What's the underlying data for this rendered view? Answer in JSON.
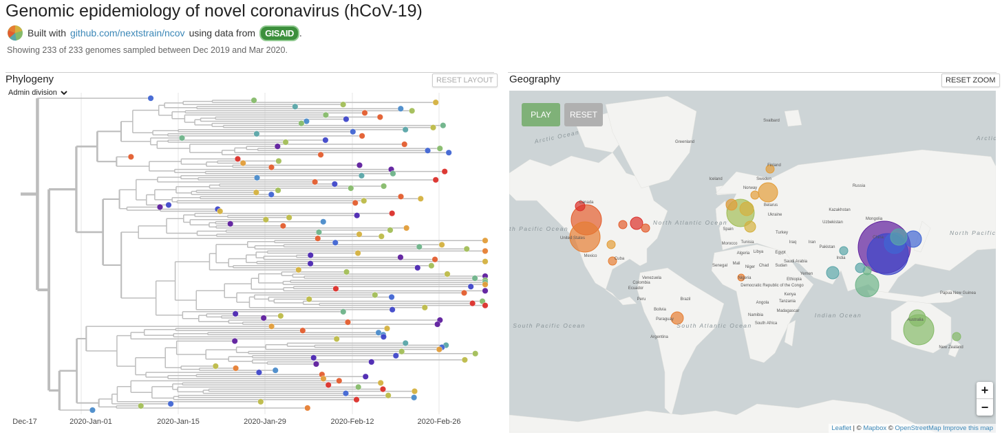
{
  "header": {
    "title": "Genomic epidemiology of novel coronavirus (hCoV-19)",
    "built_with": "Built with",
    "repo_link": "github.com/nextstrain/ncov",
    "using_data_from": "using data from",
    "gisaid": "GISAID",
    "period": ".",
    "showing": "Showing 233 of 233 genomes sampled between Dec 2019 and Mar 2020."
  },
  "phylogeny": {
    "title": "Phylogeny",
    "reset_label": "RESET LAYOUT",
    "color_by": "Admin division",
    "axis_ticks": [
      "Dec-17",
      "2020-Jan-01",
      "2020-Jan-15",
      "2020-Jan-29",
      "2020-Feb-12",
      "2020-Feb-26"
    ]
  },
  "geography": {
    "title": "Geography",
    "reset_zoom_label": "RESET ZOOM",
    "play_label": "PLAY",
    "reset_label": "RESET",
    "zoom_in": "+",
    "zoom_out": "−",
    "attribution": {
      "leaflet": "Leaflet",
      "sep": " | © ",
      "mapbox": "Mapbox",
      "c": " © ",
      "osm": "OpenStreetMap",
      "improve": "Improve this map"
    },
    "oceans": [
      "Arctic Ocean",
      "North Pacific Ocean",
      "North Atlantic Ocean",
      "South Atlantic Ocean",
      "South Pacific Ocean",
      "Indian Ocean",
      "Arctic",
      "North Pacific Ocean"
    ],
    "places": [
      "Svalbard",
      "Greenland",
      "Iceland",
      "Sweden",
      "Norway",
      "Russia",
      "Canada",
      "United States",
      "Mexico",
      "Cuba",
      "Venezuela",
      "Colombia",
      "Ecuador",
      "Peru",
      "Brazil",
      "Bolivia",
      "Paraguay",
      "Argentina",
      "Spain",
      "Morocco",
      "Algeria",
      "Libya",
      "Egypt",
      "Tunisia",
      "Turkey",
      "Iraq",
      "Iran",
      "Saudi Arabia",
      "Yemen",
      "Kazakhstan",
      "Uzbekistan",
      "Mongolia",
      "China",
      "India",
      "Pakistan",
      "Ukraine",
      "Belarus",
      "Senegal",
      "Mali",
      "Niger",
      "Chad",
      "Sudan",
      "Nigeria",
      "Ethiopia",
      "Kenya",
      "Angola",
      "Namibia",
      "South Africa",
      "Madagascar",
      "Tanzania",
      "Democratic Republic of the Congo",
      "Papua New Guinea",
      "Australia",
      "New Zealand",
      "Finland"
    ]
  },
  "colors": {
    "play": "#7fb178",
    "reset": "#b0b0b0",
    "palette": [
      "#5e1d9d",
      "#4b26b1",
      "#3f47c9",
      "#4065d3",
      "#4a8bca",
      "#5aa5a8",
      "#6eb389",
      "#86bb6a",
      "#a2be57",
      "#bdbb48",
      "#d4b13f",
      "#e29d39",
      "#e67e33",
      "#e35d2e",
      "#db2f2a"
    ]
  }
}
